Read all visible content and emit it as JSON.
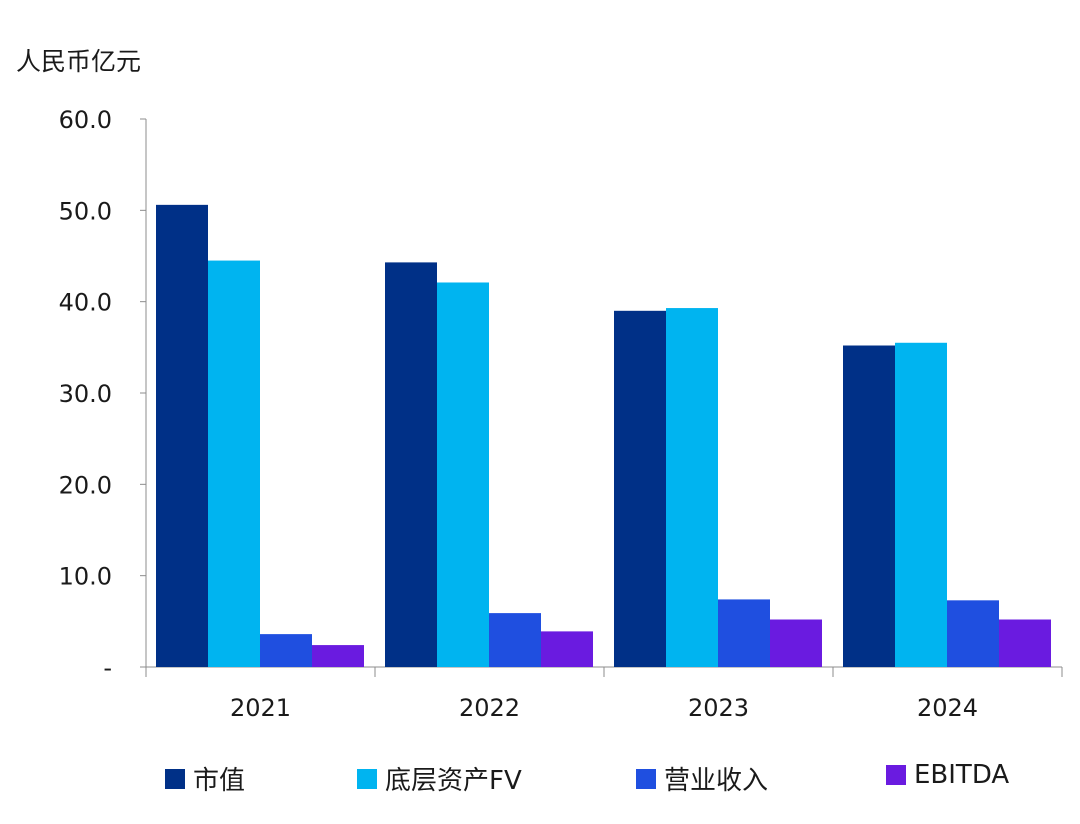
{
  "chart_data": {
    "type": "bar",
    "unit_label": "人民币亿元",
    "categories": [
      "2021",
      "2022",
      "2023",
      "2024"
    ],
    "y_ticks": [
      "-",
      "10.0",
      "20.0",
      "30.0",
      "40.0",
      "50.0",
      "60.0"
    ],
    "ylim": [
      0,
      60
    ],
    "grid": false,
    "legend_position": "bottom",
    "series": [
      {
        "name": "市值",
        "color": "#003087",
        "values": [
          50.6,
          44.3,
          39.0,
          35.2
        ]
      },
      {
        "name": "底层资产FV",
        "color": "#00B4F0",
        "values": [
          44.5,
          42.1,
          39.3,
          35.5
        ]
      },
      {
        "name": "营业收入",
        "color": "#1F4FE0",
        "values": [
          3.6,
          5.9,
          7.4,
          7.3
        ]
      },
      {
        "name": "EBITDA",
        "color": "#6A1BE0",
        "values": [
          2.4,
          3.9,
          5.2,
          5.2
        ]
      }
    ]
  }
}
